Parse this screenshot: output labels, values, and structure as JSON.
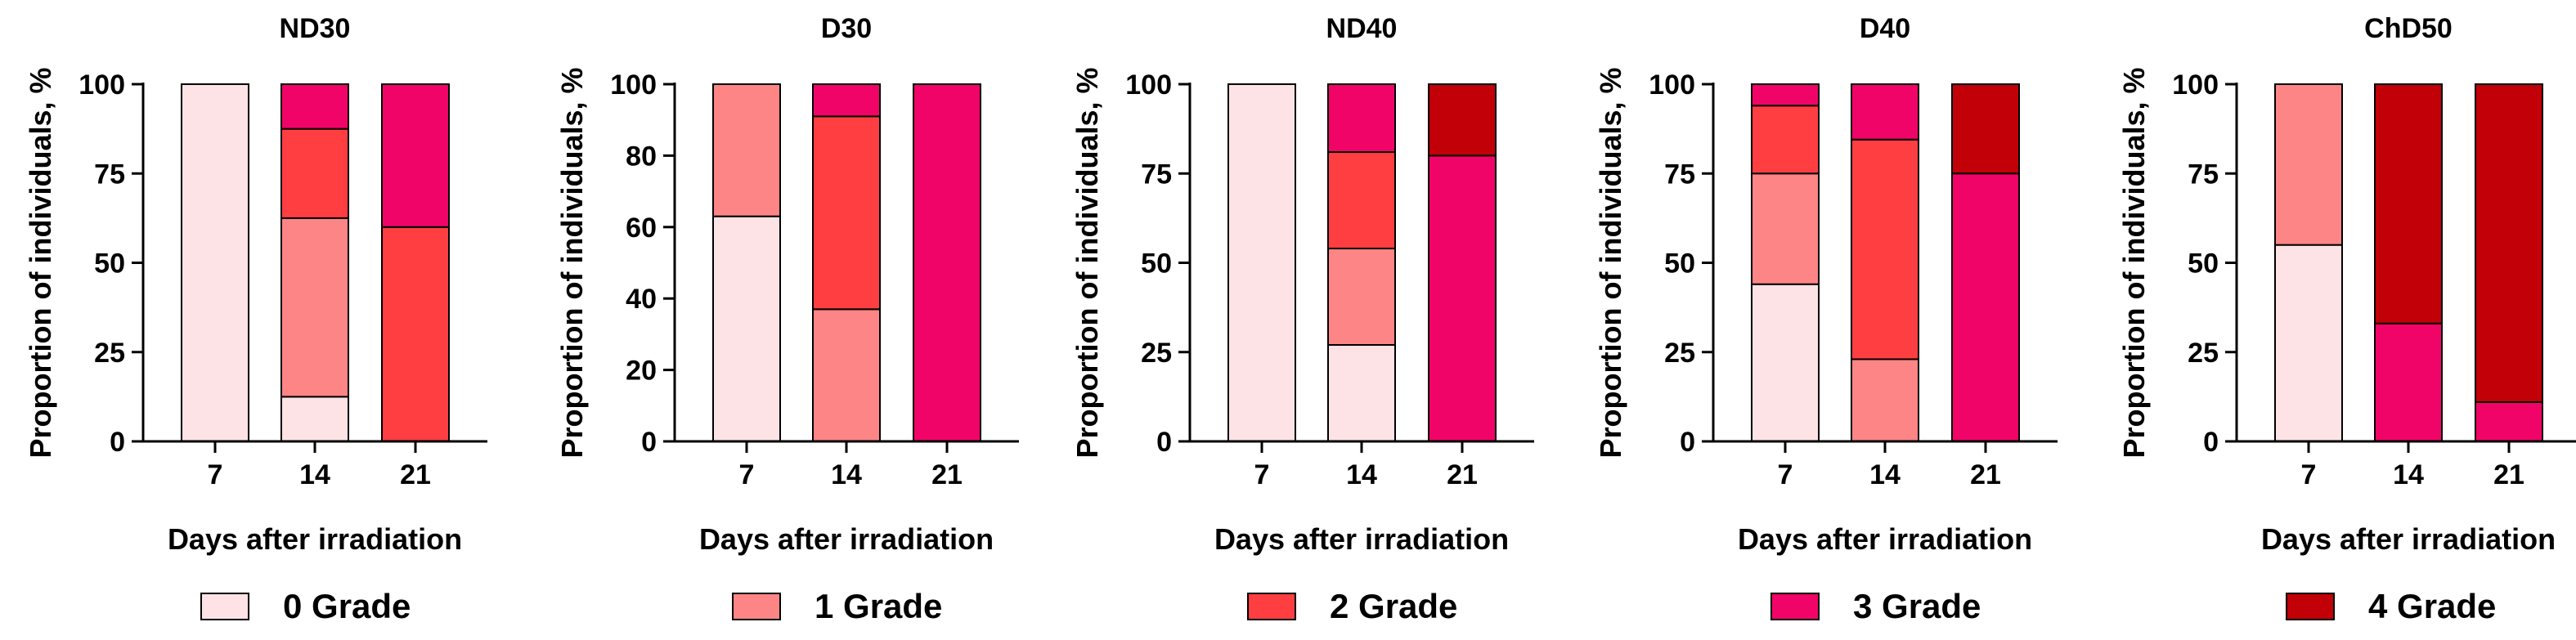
{
  "legend": [
    {
      "label": "0 Grade",
      "color": "#FDE3E6"
    },
    {
      "label": "1 Grade",
      "color": "#FE8585"
    },
    {
      "label": "2 Grade",
      "color": "#FF3E42"
    },
    {
      "label": "3 Grade",
      "color": "#F10467"
    },
    {
      "label": "4 Grade",
      "color": "#C10007"
    }
  ],
  "chart_data": [
    {
      "type": "bar",
      "stacked": true,
      "title": "ND30",
      "xlabel": "Days after irradiation",
      "ylabel": "Proportion of individuals, %",
      "categories": [
        "7",
        "14",
        "21"
      ],
      "ylim": [
        0,
        100
      ],
      "yticks": [
        0,
        25,
        50,
        75,
        100
      ],
      "series": [
        {
          "name": "0 Grade",
          "values": [
            100,
            12.5,
            0
          ]
        },
        {
          "name": "1 Grade",
          "values": [
            0,
            50,
            0
          ]
        },
        {
          "name": "2 Grade",
          "values": [
            0,
            25,
            60
          ]
        },
        {
          "name": "3 Grade",
          "values": [
            0,
            12.5,
            40
          ]
        },
        {
          "name": "4 Grade",
          "values": [
            0,
            0,
            0
          ]
        }
      ]
    },
    {
      "type": "bar",
      "stacked": true,
      "title": "D30",
      "xlabel": "Days after irradiation",
      "ylabel": "Proportion of individuals, %",
      "categories": [
        "7",
        "14",
        "21"
      ],
      "ylim": [
        0,
        100
      ],
      "yticks": [
        0,
        20,
        40,
        60,
        80,
        100
      ],
      "series": [
        {
          "name": "0 Grade",
          "values": [
            63,
            0,
            0
          ]
        },
        {
          "name": "1 Grade",
          "values": [
            37,
            37,
            0
          ]
        },
        {
          "name": "2 Grade",
          "values": [
            0,
            54,
            0
          ]
        },
        {
          "name": "3 Grade",
          "values": [
            0,
            9,
            100
          ]
        },
        {
          "name": "4 Grade",
          "values": [
            0,
            0,
            0
          ]
        }
      ]
    },
    {
      "type": "bar",
      "stacked": true,
      "title": "ND40",
      "xlabel": "Days after irradiation",
      "ylabel": "Proportion of individuals, %",
      "categories": [
        "7",
        "14",
        "21"
      ],
      "ylim": [
        0,
        100
      ],
      "yticks": [
        0,
        25,
        50,
        75,
        100
      ],
      "series": [
        {
          "name": "0 Grade",
          "values": [
            100,
            27,
            0
          ]
        },
        {
          "name": "1 Grade",
          "values": [
            0,
            27,
            0
          ]
        },
        {
          "name": "2 Grade",
          "values": [
            0,
            27,
            0
          ]
        },
        {
          "name": "3 Grade",
          "values": [
            0,
            19,
            80
          ]
        },
        {
          "name": "4 Grade",
          "values": [
            0,
            0,
            20
          ]
        }
      ]
    },
    {
      "type": "bar",
      "stacked": true,
      "title": "D40",
      "xlabel": "Days after irradiation",
      "ylabel": "Proportion of individuals, %",
      "categories": [
        "7",
        "14",
        "21"
      ],
      "ylim": [
        0,
        100
      ],
      "yticks": [
        0,
        25,
        50,
        75,
        100
      ],
      "series": [
        {
          "name": "0 Grade",
          "values": [
            44,
            0,
            0
          ]
        },
        {
          "name": "1 Grade",
          "values": [
            31,
            23,
            0
          ]
        },
        {
          "name": "2 Grade",
          "values": [
            19,
            61.5,
            0
          ]
        },
        {
          "name": "3 Grade",
          "values": [
            6,
            15.5,
            75
          ]
        },
        {
          "name": "4 Grade",
          "values": [
            0,
            0,
            25
          ]
        }
      ]
    },
    {
      "type": "bar",
      "stacked": true,
      "title": "ChD50",
      "xlabel": "Days after irradiation",
      "ylabel": "Proportion of individuals, %",
      "categories": [
        "7",
        "14",
        "21"
      ],
      "ylim": [
        0,
        100
      ],
      "yticks": [
        0,
        25,
        50,
        75,
        100
      ],
      "series": [
        {
          "name": "0 Grade",
          "values": [
            55,
            0,
            0
          ]
        },
        {
          "name": "1 Grade",
          "values": [
            45,
            0,
            0
          ]
        },
        {
          "name": "2 Grade",
          "values": [
            0,
            0,
            0
          ]
        },
        {
          "name": "3 Grade",
          "values": [
            0,
            33,
            11
          ]
        },
        {
          "name": "4 Grade",
          "values": [
            0,
            67,
            89
          ]
        }
      ]
    }
  ]
}
